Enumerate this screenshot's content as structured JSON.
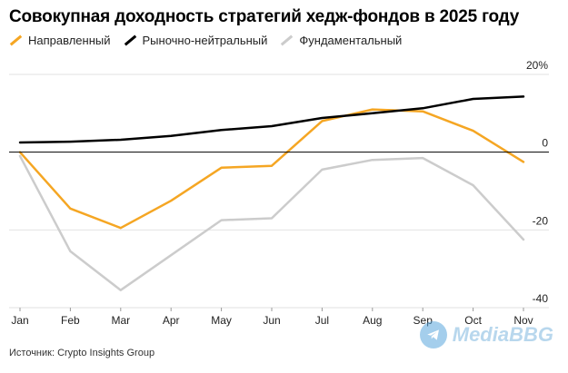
{
  "title": "Совокупная доходность стратегий хедж-фондов в 2025 году",
  "source": "Источник: Crypto Insights Group",
  "watermark": "MediaBBG",
  "chart_data": {
    "type": "line",
    "title": "Совокупная доходность стратегий хедж-фондов в 2025 году",
    "categories": [
      "Jan",
      "Feb",
      "Mar",
      "Apr",
      "May",
      "Jun",
      "Jul",
      "Aug",
      "Sep",
      "Oct",
      "Nov"
    ],
    "ylim": [
      -40,
      20
    ],
    "yticks": [
      {
        "value": 20,
        "label": "20%"
      },
      {
        "value": 0,
        "label": "0"
      },
      {
        "value": -20,
        "label": "-20"
      },
      {
        "value": -40,
        "label": "-40"
      }
    ],
    "grid": true,
    "legend_position": "top-left",
    "series": [
      {
        "name": "Направленный",
        "color": "#f5a623",
        "values": [
          0,
          -14.5,
          -19.5,
          -12.5,
          -4,
          -3.5,
          8,
          11,
          10.5,
          5.5,
          -2.5
        ]
      },
      {
        "name": "Рыночно-нейтральный",
        "color": "#000000",
        "values": [
          2.5,
          2.7,
          3.2,
          4.2,
          5.7,
          6.7,
          8.8,
          10,
          11.3,
          13.7,
          14.3
        ]
      },
      {
        "name": "Фундаментальный",
        "color": "#cccccc",
        "values": [
          -1,
          -25.5,
          -35.5,
          -26.5,
          -17.5,
          -17,
          -4.5,
          -2,
          -1.5,
          -8.5,
          -22.5
        ]
      }
    ]
  }
}
